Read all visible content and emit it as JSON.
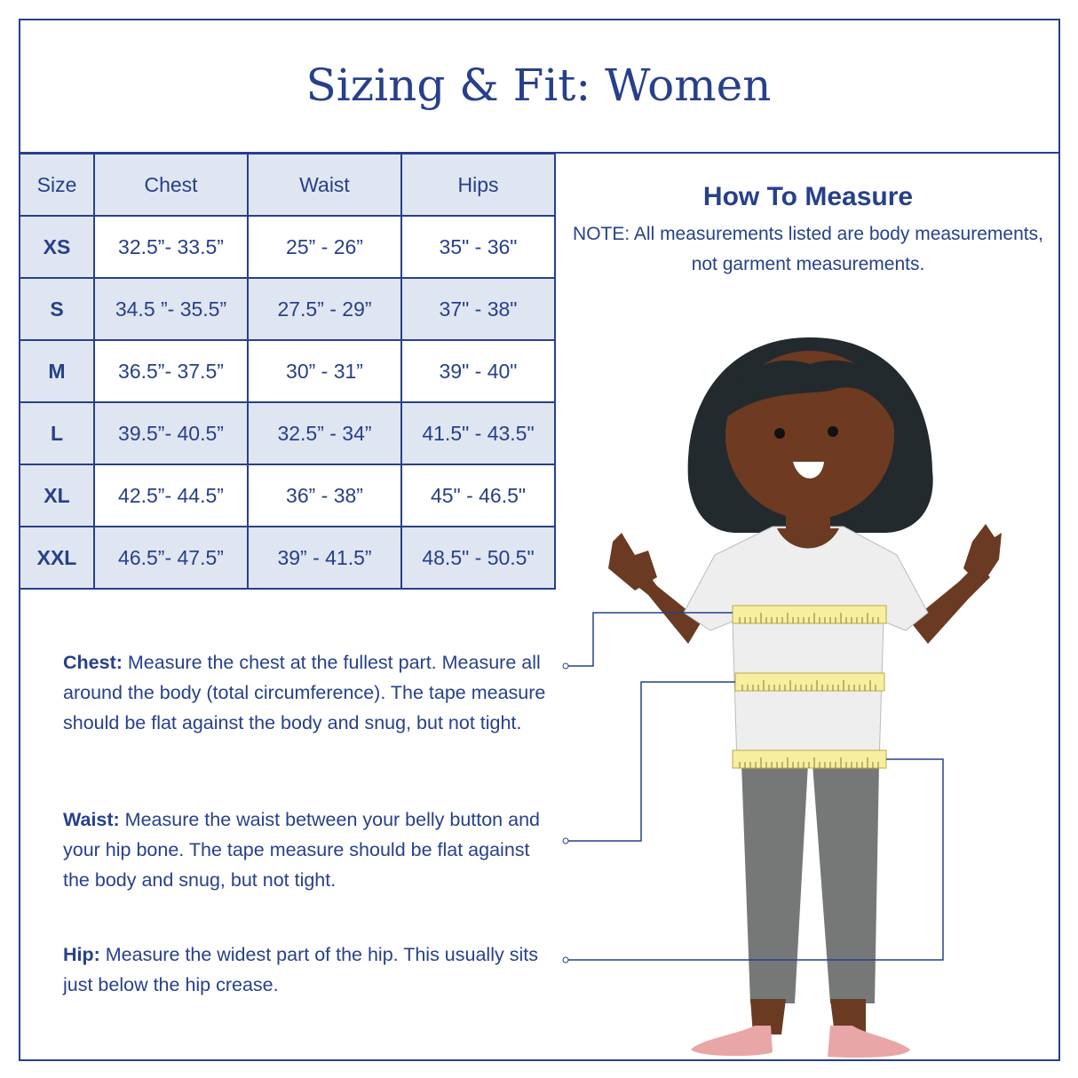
{
  "title": "Sizing & Fit: Women",
  "table": {
    "headers": [
      "Size",
      "Chest",
      "Waist",
      "Hips"
    ],
    "rows": [
      [
        "XS",
        "32.5”- 33.5”",
        "25” - 26”",
        "35\" - 36\""
      ],
      [
        "S",
        "34.5 ”- 35.5”",
        "27.5” - 29”",
        "37\" - 38\""
      ],
      [
        "M",
        "36.5”- 37.5”",
        "30” - 31”",
        "39\" - 40\""
      ],
      [
        "L",
        "39.5”- 40.5”",
        "32.5” - 34”",
        "41.5\" - 43.5\""
      ],
      [
        "XL",
        "42.5”- 44.5”",
        "36” - 38”",
        "45\" - 46.5\""
      ],
      [
        "XXL",
        "46.5”- 47.5”",
        "39” - 41.5”",
        "48.5\" - 50.5\""
      ]
    ]
  },
  "how_to": {
    "heading": "How To Measure",
    "note": "NOTE: All measurements listed are body measurements, not garment measurements."
  },
  "instructions": [
    {
      "label": "Chest:",
      "text": " Measure the chest at the fullest part. Measure all around the body (total circumference). The tape measure should be flat against the body and snug, but not tight."
    },
    {
      "label": "Waist:",
      "text": " Measure the waist between your belly button and your hip bone. The tape measure should be flat against the body and snug, but not tight."
    },
    {
      "label": "Hip:",
      "text": " Measure the widest part of the hip. This usually sits just below the hip crease."
    }
  ],
  "colors": {
    "brand": "#27408b",
    "cell_fill": "#dfe6f1",
    "tape": "#f7eea0"
  }
}
